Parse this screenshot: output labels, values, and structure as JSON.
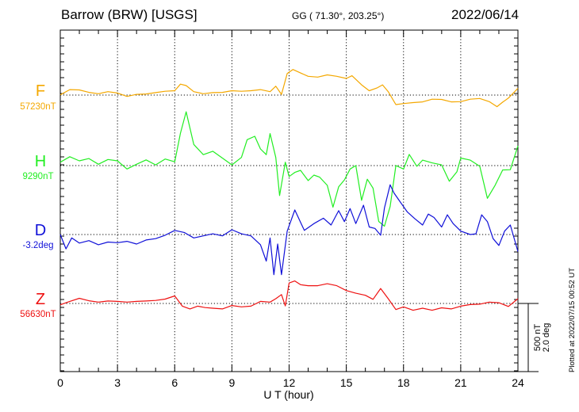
{
  "header": {
    "station": "Barrow (BRW)  [USGS]",
    "coords": "GG ( 71.30°, 203.25°)",
    "date": "2022/06/14"
  },
  "plotted_note": "Plotted at 2022/07/15 00:52 UT",
  "chart_data": {
    "type": "line",
    "title": "Barrow (BRW)  [USGS]",
    "xlabel": "U T (hour)",
    "xlim": [
      0,
      24
    ],
    "x_ticks": [
      "0",
      "3",
      "6",
      "9",
      "12",
      "15",
      "18",
      "21",
      "24"
    ],
    "grid": "dotted vertical lines every 3 hours",
    "scale_bar": {
      "value_text": "500 nT",
      "value_text2": "2.0 deg",
      "nT": 500,
      "deg": 2.0
    },
    "series": [
      {
        "name": "F",
        "baseline_label": "57230nT",
        "baseline": 57230,
        "unit": "nT",
        "color": "#f4a800",
        "points": [
          [
            0,
            57232
          ],
          [
            0.5,
            57270
          ],
          [
            1,
            57268
          ],
          [
            1.5,
            57250
          ],
          [
            2,
            57240
          ],
          [
            2.5,
            57255
          ],
          [
            3,
            57245
          ],
          [
            3.5,
            57220
          ],
          [
            4,
            57235
          ],
          [
            4.5,
            57238
          ],
          [
            5,
            57248
          ],
          [
            5.5,
            57258
          ],
          [
            6,
            57262
          ],
          [
            6.3,
            57310
          ],
          [
            6.6,
            57300
          ],
          [
            7,
            57255
          ],
          [
            7.5,
            57240
          ],
          [
            8,
            57248
          ],
          [
            8.5,
            57250
          ],
          [
            9,
            57262
          ],
          [
            9.5,
            57258
          ],
          [
            10,
            57262
          ],
          [
            10.5,
            57270
          ],
          [
            11,
            57255
          ],
          [
            11.3,
            57295
          ],
          [
            11.6,
            57235
          ],
          [
            11.9,
            57388
          ],
          [
            12.2,
            57418
          ],
          [
            12.6,
            57392
          ],
          [
            13,
            57368
          ],
          [
            13.5,
            57362
          ],
          [
            14,
            57378
          ],
          [
            14.5,
            57368
          ],
          [
            15,
            57352
          ],
          [
            15.3,
            57372
          ],
          [
            15.8,
            57305
          ],
          [
            16.2,
            57262
          ],
          [
            16.6,
            57282
          ],
          [
            16.9,
            57305
          ],
          [
            17.2,
            57255
          ],
          [
            17.6,
            57160
          ],
          [
            18,
            57168
          ],
          [
            18.5,
            57175
          ],
          [
            19,
            57180
          ],
          [
            19.5,
            57200
          ],
          [
            20,
            57198
          ],
          [
            20.5,
            57180
          ],
          [
            21,
            57182
          ],
          [
            21.5,
            57200
          ],
          [
            22,
            57205
          ],
          [
            22.5,
            57182
          ],
          [
            22.9,
            57145
          ],
          [
            23.2,
            57178
          ],
          [
            23.5,
            57208
          ],
          [
            24,
            57280
          ]
        ]
      },
      {
        "name": "H",
        "baseline_label": "9290nT",
        "baseline": 9290,
        "unit": "nT",
        "color": "#22ee22",
        "points": [
          [
            0,
            9315
          ],
          [
            0.5,
            9355
          ],
          [
            1,
            9325
          ],
          [
            1.5,
            9342
          ],
          [
            2,
            9300
          ],
          [
            2.5,
            9335
          ],
          [
            3,
            9325
          ],
          [
            3.5,
            9265
          ],
          [
            4,
            9300
          ],
          [
            4.5,
            9332
          ],
          [
            5,
            9295
          ],
          [
            5.5,
            9338
          ],
          [
            6,
            9318
          ],
          [
            6.3,
            9528
          ],
          [
            6.6,
            9685
          ],
          [
            7,
            9445
          ],
          [
            7.5,
            9370
          ],
          [
            8,
            9395
          ],
          [
            8.5,
            9345
          ],
          [
            9,
            9295
          ],
          [
            9.5,
            9350
          ],
          [
            9.8,
            9480
          ],
          [
            10.2,
            9505
          ],
          [
            10.5,
            9412
          ],
          [
            10.8,
            9370
          ],
          [
            11,
            9525
          ],
          [
            11.3,
            9350
          ],
          [
            11.5,
            9070
          ],
          [
            11.8,
            9315
          ],
          [
            12,
            9210
          ],
          [
            12.3,
            9240
          ],
          [
            12.6,
            9255
          ],
          [
            13,
            9180
          ],
          [
            13.3,
            9220
          ],
          [
            13.6,
            9205
          ],
          [
            14,
            9145
          ],
          [
            14.3,
            8985
          ],
          [
            14.6,
            9135
          ],
          [
            14.9,
            9185
          ],
          [
            15.2,
            9265
          ],
          [
            15.5,
            9290
          ],
          [
            15.8,
            9035
          ],
          [
            16.1,
            9190
          ],
          [
            16.4,
            9125
          ],
          [
            16.7,
            8880
          ],
          [
            17,
            8845
          ],
          [
            17.3,
            8990
          ],
          [
            17.6,
            9290
          ],
          [
            18,
            9265
          ],
          [
            18.3,
            9372
          ],
          [
            18.7,
            9285
          ],
          [
            19,
            9330
          ],
          [
            19.5,
            9310
          ],
          [
            20,
            9295
          ],
          [
            20.4,
            9175
          ],
          [
            20.8,
            9245
          ],
          [
            21,
            9345
          ],
          [
            21.5,
            9330
          ],
          [
            22,
            9285
          ],
          [
            22.4,
            9050
          ],
          [
            22.8,
            9145
          ],
          [
            23.2,
            9258
          ],
          [
            23.6,
            9260
          ],
          [
            24,
            9435
          ]
        ]
      },
      {
        "name": "D",
        "baseline_label": "-3.2deg",
        "baseline": -3.2,
        "unit": "deg",
        "color": "#1010d8",
        "points": [
          [
            0,
            -3.2
          ],
          [
            0.3,
            -3.62
          ],
          [
            0.6,
            -3.3
          ],
          [
            1,
            -3.45
          ],
          [
            1.5,
            -3.38
          ],
          [
            2,
            -3.5
          ],
          [
            2.5,
            -3.42
          ],
          [
            3,
            -3.44
          ],
          [
            3.5,
            -3.4
          ],
          [
            4,
            -3.48
          ],
          [
            4.5,
            -3.36
          ],
          [
            5,
            -3.32
          ],
          [
            5.5,
            -3.22
          ],
          [
            6,
            -3.08
          ],
          [
            6.5,
            -3.14
          ],
          [
            7,
            -3.3
          ],
          [
            7.5,
            -3.24
          ],
          [
            8,
            -3.18
          ],
          [
            8.5,
            -3.24
          ],
          [
            9,
            -3.06
          ],
          [
            9.5,
            -3.18
          ],
          [
            10,
            -3.24
          ],
          [
            10.5,
            -3.5
          ],
          [
            10.8,
            -3.98
          ],
          [
            11,
            -3.3
          ],
          [
            11.2,
            -4.38
          ],
          [
            11.4,
            -3.48
          ],
          [
            11.6,
            -4.38
          ],
          [
            11.9,
            -3.1
          ],
          [
            12.3,
            -2.48
          ],
          [
            12.8,
            -3.08
          ],
          [
            13.3,
            -2.88
          ],
          [
            13.8,
            -2.72
          ],
          [
            14.2,
            -2.92
          ],
          [
            14.6,
            -2.5
          ],
          [
            14.9,
            -2.82
          ],
          [
            15.2,
            -2.44
          ],
          [
            15.5,
            -2.88
          ],
          [
            15.9,
            -2.34
          ],
          [
            16.2,
            -2.98
          ],
          [
            16.5,
            -3.02
          ],
          [
            16.8,
            -3.22
          ],
          [
            17,
            -2.42
          ],
          [
            17.3,
            -1.74
          ],
          [
            17.5,
            -1.98
          ],
          [
            17.8,
            -2.22
          ],
          [
            18.2,
            -2.54
          ],
          [
            18.6,
            -2.74
          ],
          [
            19,
            -2.92
          ],
          [
            19.3,
            -2.6
          ],
          [
            19.6,
            -2.7
          ],
          [
            20,
            -2.98
          ],
          [
            20.3,
            -2.62
          ],
          [
            20.6,
            -2.88
          ],
          [
            21,
            -3.1
          ],
          [
            21.5,
            -3.2
          ],
          [
            21.8,
            -3.18
          ],
          [
            22.1,
            -2.62
          ],
          [
            22.4,
            -2.82
          ],
          [
            22.7,
            -3.32
          ],
          [
            23,
            -3.52
          ],
          [
            23.3,
            -3.1
          ],
          [
            23.6,
            -2.92
          ],
          [
            24,
            -3.7
          ]
        ]
      },
      {
        "name": "Z",
        "baseline_label": "56630nT",
        "baseline": 56630,
        "unit": "nT",
        "color": "#ee1111",
        "points": [
          [
            0,
            56620
          ],
          [
            0.5,
            56645
          ],
          [
            1,
            56668
          ],
          [
            1.5,
            56650
          ],
          [
            2,
            56640
          ],
          [
            2.5,
            56648
          ],
          [
            3,
            56645
          ],
          [
            3.5,
            56640
          ],
          [
            4,
            56645
          ],
          [
            4.5,
            56648
          ],
          [
            5,
            56652
          ],
          [
            5.5,
            56662
          ],
          [
            6,
            56685
          ],
          [
            6.4,
            56610
          ],
          [
            6.8,
            56590
          ],
          [
            7.2,
            56610
          ],
          [
            7.6,
            56600
          ],
          [
            8,
            56595
          ],
          [
            8.5,
            56590
          ],
          [
            9,
            56615
          ],
          [
            9.5,
            56605
          ],
          [
            10,
            56610
          ],
          [
            10.5,
            56645
          ],
          [
            11,
            56640
          ],
          [
            11.3,
            56665
          ],
          [
            11.6,
            56695
          ],
          [
            11.8,
            56612
          ],
          [
            12,
            56780
          ],
          [
            12.3,
            56795
          ],
          [
            12.6,
            56768
          ],
          [
            13,
            56760
          ],
          [
            13.5,
            56760
          ],
          [
            14,
            56775
          ],
          [
            14.5,
            56760
          ],
          [
            15,
            56725
          ],
          [
            15.5,
            56705
          ],
          [
            16,
            56690
          ],
          [
            16.4,
            56660
          ],
          [
            16.8,
            56740
          ],
          [
            17.2,
            56665
          ],
          [
            17.6,
            56585
          ],
          [
            18,
            56605
          ],
          [
            18.5,
            56580
          ],
          [
            19,
            56595
          ],
          [
            19.5,
            56580
          ],
          [
            20,
            56598
          ],
          [
            20.5,
            56590
          ],
          [
            21,
            56610
          ],
          [
            21.5,
            56622
          ],
          [
            22,
            56625
          ],
          [
            22.5,
            56640
          ],
          [
            23,
            56635
          ],
          [
            23.5,
            56608
          ],
          [
            24,
            56665
          ]
        ]
      }
    ]
  }
}
